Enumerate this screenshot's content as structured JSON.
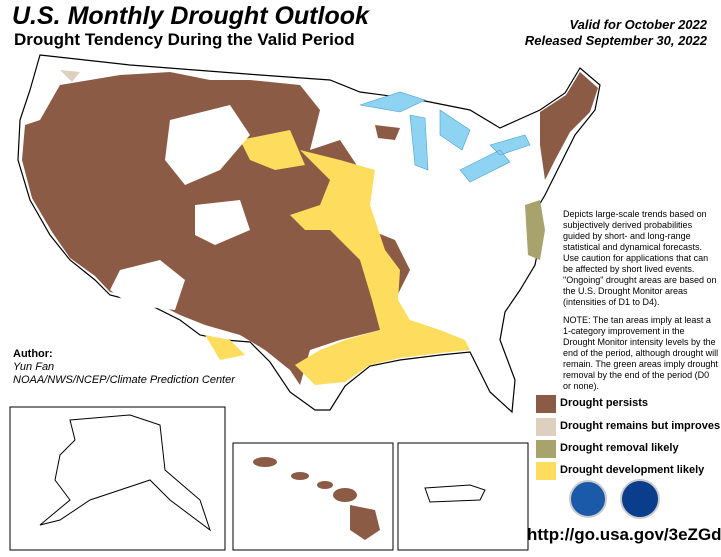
{
  "header": {
    "title": "U.S. Monthly Drought Outlook",
    "subtitle": "Drought Tendency During the Valid Period",
    "valid": "Valid for October 2022",
    "released": "Released September 30, 2022"
  },
  "description": "Depicts large-scale trends based on subjectively derived probabilities guided by short- and long-range statistical and dynamical forecasts. Use caution for applications that can be affected by short lived events. \"Ongoing\" drought areas are based on the U.S. Drought Monitor areas (intensities of D1 to D4).",
  "note": "NOTE: The tan areas imply at least a 1-category improvement in the Drought Monitor intensity levels by the end of the period, although drought will remain. The green areas imply drought removal by the end of the period (D0 or none).",
  "author": {
    "label": "Author:",
    "name": "Yun Fan",
    "organization": "NOAA/NWS/NCEP/Climate Prediction Center"
  },
  "legend": [
    {
      "label": "Drought persists",
      "color": "#8c5b45"
    },
    {
      "label": "Drought remains but improves",
      "color": "#ddd0bf"
    },
    {
      "label": "Drought removal likely",
      "color": "#a8a36c"
    },
    {
      "label": "Drought development likely",
      "color": "#fedd5e"
    }
  ],
  "url": "http://go.usa.gov/3eZGd"
}
